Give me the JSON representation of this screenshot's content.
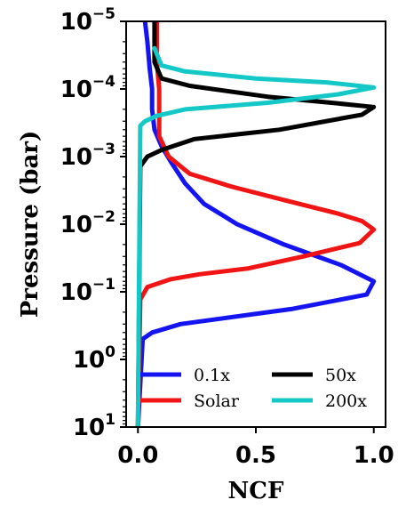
{
  "chart_data": {
    "type": "line",
    "xlabel": "NCF",
    "ylabel": "Pressure (bar)",
    "xlim": [
      -0.05,
      1.05
    ],
    "ylim": [
      10,
      1e-05
    ],
    "yscale": "log",
    "x_ticks": [
      "0.0",
      "0.5",
      "1.0"
    ],
    "y_ticks": [
      {
        "value": 1e-05,
        "base": "10",
        "exp": "−5"
      },
      {
        "value": 0.0001,
        "base": "10",
        "exp": "−4"
      },
      {
        "value": 0.001,
        "base": "10",
        "exp": "−3"
      },
      {
        "value": 0.01,
        "base": "10",
        "exp": "−2"
      },
      {
        "value": 0.1,
        "base": "10",
        "exp": "−1"
      },
      {
        "value": 1,
        "base": "10",
        "exp": "0"
      },
      {
        "value": 10,
        "base": "10",
        "exp": "1"
      }
    ],
    "grid": false,
    "legend": {
      "position": "lower-right",
      "columns": 2
    },
    "series": [
      {
        "name": "0.1x",
        "color": "#1414f0",
        "points": [
          [
            0.03,
            1e-05
          ],
          [
            0.04,
            2e-05
          ],
          [
            0.05,
            5e-05
          ],
          [
            0.06,
            0.0001
          ],
          [
            0.06,
            0.0002
          ],
          [
            0.07,
            0.0004
          ],
          [
            0.1,
            0.0007
          ],
          [
            0.14,
            0.0012
          ],
          [
            0.2,
            0.0025
          ],
          [
            0.28,
            0.005
          ],
          [
            0.42,
            0.01
          ],
          [
            0.62,
            0.02
          ],
          [
            0.86,
            0.04
          ],
          [
            1.0,
            0.07
          ],
          [
            0.97,
            0.11
          ],
          [
            0.65,
            0.18
          ],
          [
            0.35,
            0.25
          ],
          [
            0.18,
            0.3
          ],
          [
            0.06,
            0.4
          ],
          [
            0.02,
            0.5
          ],
          [
            0.0,
            10
          ]
        ]
      },
      {
        "name": "Solar",
        "color": "#f01414",
        "points": [
          [
            0.08,
            1e-05
          ],
          [
            0.08,
            4e-05
          ],
          [
            0.09,
            0.0001
          ],
          [
            0.09,
            0.0005
          ],
          [
            0.13,
            0.001
          ],
          [
            0.22,
            0.0018
          ],
          [
            0.4,
            0.0028
          ],
          [
            0.63,
            0.0045
          ],
          [
            0.85,
            0.007
          ],
          [
            0.95,
            0.009
          ],
          [
            1.0,
            0.012
          ],
          [
            0.94,
            0.019
          ],
          [
            0.7,
            0.03
          ],
          [
            0.47,
            0.045
          ],
          [
            0.26,
            0.055
          ],
          [
            0.14,
            0.065
          ],
          [
            0.04,
            0.085
          ],
          [
            0.01,
            0.13
          ],
          [
            0.0,
            10
          ]
        ]
      },
      {
        "name": "50x",
        "color": "#000000",
        "points": [
          [
            0.07,
            1e-05
          ],
          [
            0.07,
            4e-05
          ],
          [
            0.1,
            7e-05
          ],
          [
            0.22,
            9e-05
          ],
          [
            0.55,
            0.00013
          ],
          [
            0.82,
            0.00016
          ],
          [
            1.0,
            0.000185
          ],
          [
            0.95,
            0.00024
          ],
          [
            0.6,
            0.0004
          ],
          [
            0.24,
            0.00055
          ],
          [
            0.1,
            0.0008
          ],
          [
            0.04,
            0.001
          ],
          [
            0.01,
            0.0014
          ],
          [
            0.0,
            10
          ]
        ]
      },
      {
        "name": "200x",
        "color": "#14c8c8",
        "points": [
          [
            0.07,
            2.5e-05
          ],
          [
            0.1,
            4.5e-05
          ],
          [
            0.2,
            5.5e-05
          ],
          [
            0.5,
            7e-05
          ],
          [
            0.8,
            8e-05
          ],
          [
            1.0,
            9.5e-05
          ],
          [
            0.85,
            0.00012
          ],
          [
            0.55,
            0.00016
          ],
          [
            0.2,
            0.0002
          ],
          [
            0.08,
            0.00025
          ],
          [
            0.03,
            0.0003
          ],
          [
            0.01,
            0.00035
          ],
          [
            0.0,
            10
          ]
        ]
      }
    ]
  }
}
